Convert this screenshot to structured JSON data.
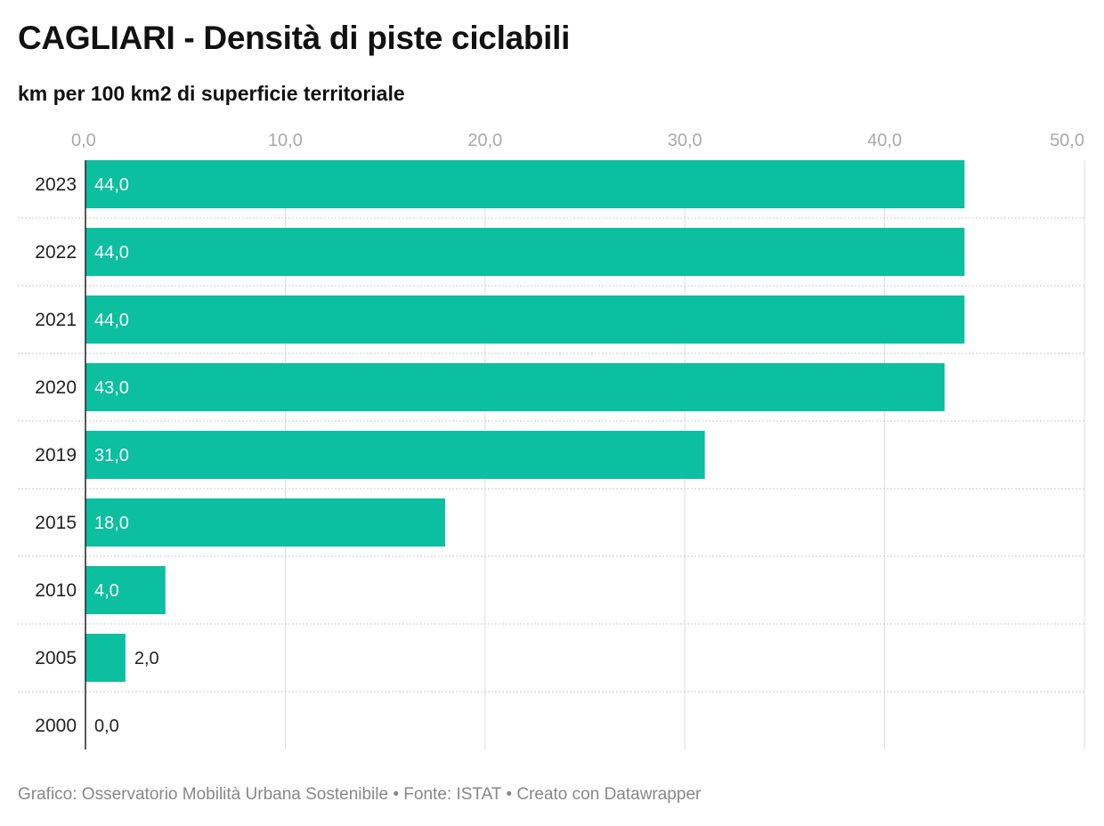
{
  "header": {
    "title": "CAGLIARI - Densità di piste ciclabili",
    "subtitle": "km per 100 km2 di superficie territoriale"
  },
  "footer": {
    "credit": "Grafico: Osservatorio Mobilità Urbana Sostenibile",
    "sep1": "•",
    "source": "Fonte: ISTAT",
    "sep2": "•",
    "tool": "Creato con Datawrapper"
  },
  "colors": {
    "bar": "#0bbfa0",
    "grid": "#dddddd",
    "row_divider": "#cccccc",
    "axis": "#222222"
  },
  "chart_data": {
    "type": "bar",
    "orientation": "horizontal",
    "title": "CAGLIARI - Densità di piste ciclabili",
    "subtitle": "km per 100 km2 di superficie territoriale",
    "xlabel": "",
    "ylabel": "",
    "xlim": [
      0,
      50
    ],
    "x_ticks": [
      0,
      10,
      20,
      30,
      40,
      50
    ],
    "x_tick_labels": [
      "0,0",
      "10,0",
      "20,0",
      "30,0",
      "40,0",
      "50,0"
    ],
    "tick_position": "top",
    "grid": true,
    "categories": [
      "2023",
      "2022",
      "2021",
      "2020",
      "2019",
      "2015",
      "2010",
      "2005",
      "2000"
    ],
    "values": [
      44.0,
      44.0,
      44.0,
      43.0,
      31.0,
      18.0,
      4.0,
      2.0,
      0.0
    ],
    "value_labels": [
      "44,0",
      "44,0",
      "44,0",
      "43,0",
      "31,0",
      "18,0",
      "4,0",
      "2,0",
      "0,0"
    ]
  }
}
